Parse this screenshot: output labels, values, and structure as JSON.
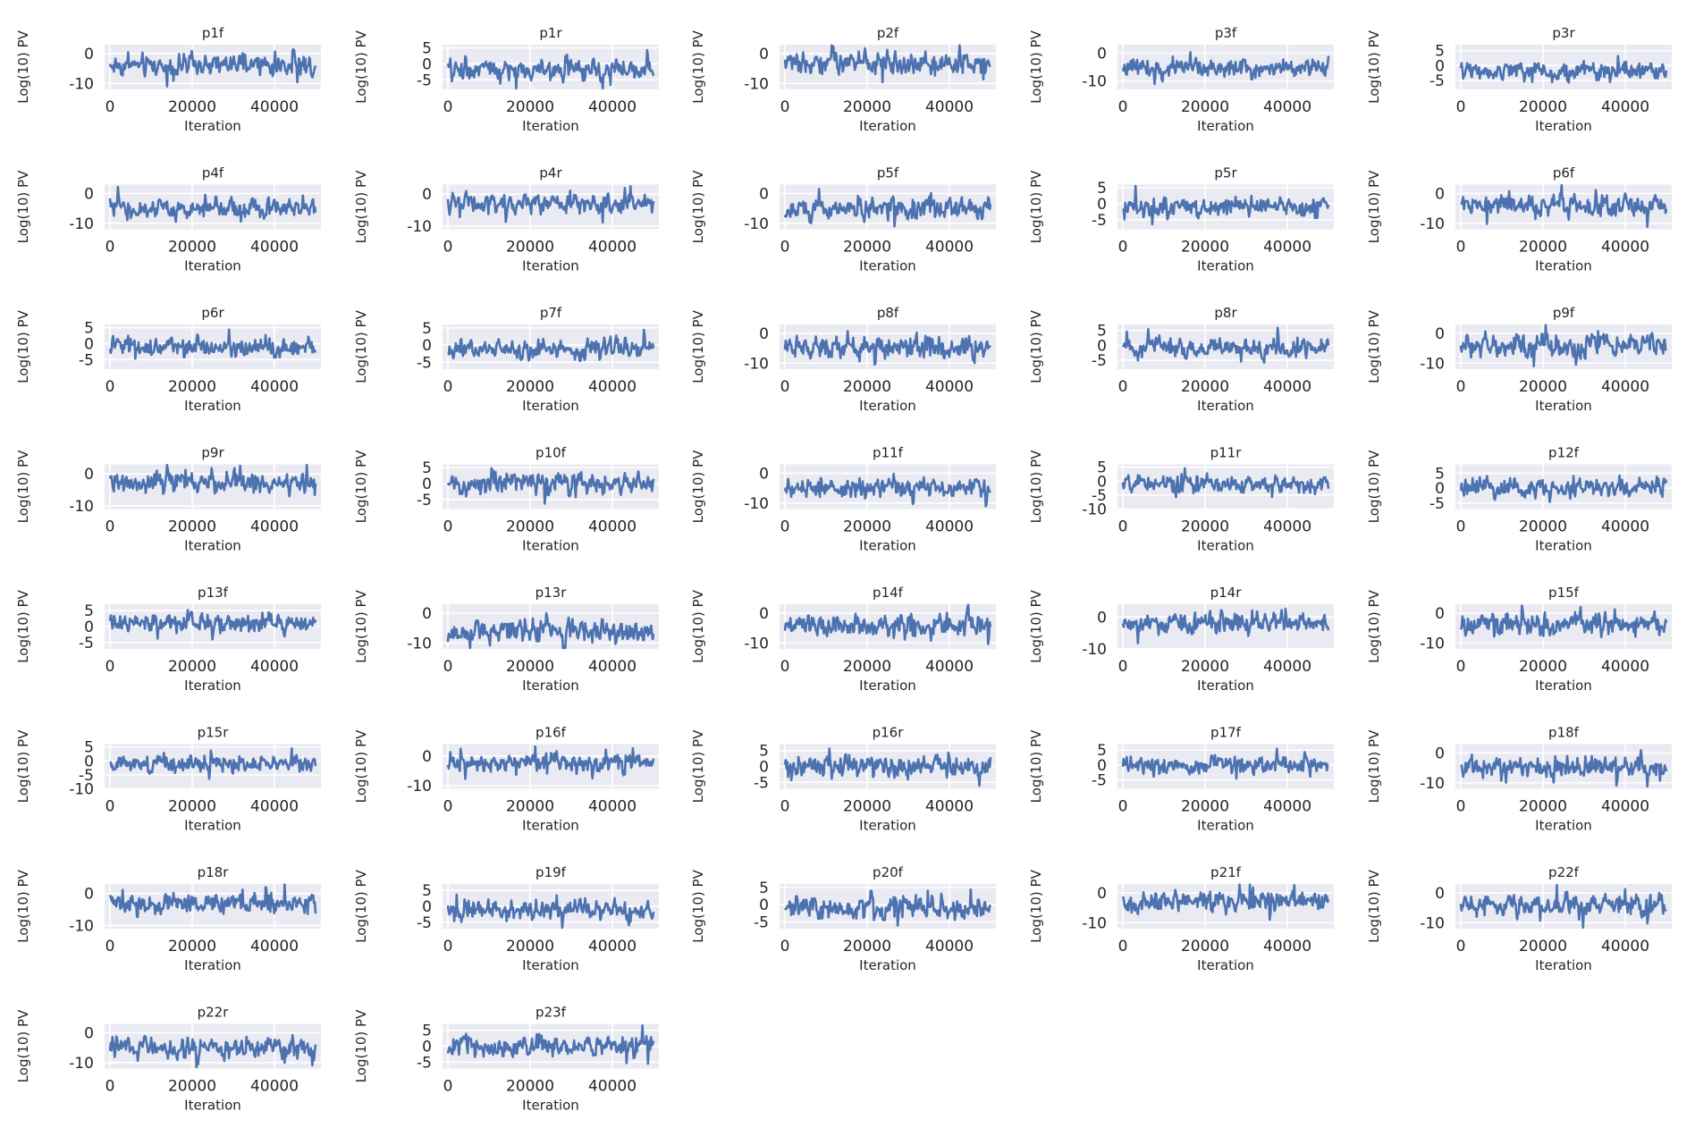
{
  "chart_data": {
    "type": "line",
    "layout": {
      "rows": 8,
      "cols": 5
    },
    "shared_x_ticks": [
      0,
      20000,
      40000
    ],
    "shared_xlim": [
      0,
      50000
    ],
    "xlabel": "Iteration",
    "ylabel": "Log(10) PV",
    "grid": true,
    "color": "#4c72b0",
    "background": "#eaeaf2",
    "panels": [
      {
        "title": "p1f",
        "ylim": [
          -12,
          3
        ],
        "yticks": [
          0,
          -10
        ],
        "mean": -4,
        "spread": 2.5
      },
      {
        "title": "p1r",
        "ylim": [
          -8,
          6
        ],
        "yticks": [
          5,
          0,
          -5
        ],
        "mean": -2,
        "spread": 2.2
      },
      {
        "title": "p2f",
        "ylim": [
          -12,
          3
        ],
        "yticks": [
          0,
          -10
        ],
        "mean": -3,
        "spread": 2.5
      },
      {
        "title": "p3f",
        "ylim": [
          -13,
          3
        ],
        "yticks": [
          0,
          -10
        ],
        "mean": -5,
        "spread": 2.2
      },
      {
        "title": "p3r",
        "ylim": [
          -8,
          7
        ],
        "yticks": [
          5,
          0,
          -5
        ],
        "mean": -2,
        "spread": 2.2
      },
      {
        "title": "p4f",
        "ylim": [
          -12,
          3
        ],
        "yticks": [
          0,
          -10
        ],
        "mean": -5,
        "spread": 2.2
      },
      {
        "title": "p4r",
        "ylim": [
          -11,
          3
        ],
        "yticks": [
          0,
          -10
        ],
        "mean": -3,
        "spread": 2.2
      },
      {
        "title": "p5f",
        "ylim": [
          -12,
          3
        ],
        "yticks": [
          0,
          -10
        ],
        "mean": -5,
        "spread": 2.5
      },
      {
        "title": "p5r",
        "ylim": [
          -8,
          6
        ],
        "yticks": [
          5,
          0,
          -5
        ],
        "mean": -1,
        "spread": 2.2
      },
      {
        "title": "p6f",
        "ylim": [
          -12,
          3
        ],
        "yticks": [
          0,
          -10
        ],
        "mean": -4,
        "spread": 2.5
      },
      {
        "title": "p6r",
        "ylim": [
          -8,
          6
        ],
        "yticks": [
          5,
          0,
          -5
        ],
        "mean": -1,
        "spread": 2.0
      },
      {
        "title": "p7f",
        "ylim": [
          -7,
          6
        ],
        "yticks": [
          5,
          0,
          -5
        ],
        "mean": -1,
        "spread": 2.0
      },
      {
        "title": "p8f",
        "ylim": [
          -12,
          3
        ],
        "yticks": [
          0,
          -10
        ],
        "mean": -5,
        "spread": 2.5
      },
      {
        "title": "p8r",
        "ylim": [
          -8,
          7
        ],
        "yticks": [
          5,
          0,
          -5
        ],
        "mean": -1,
        "spread": 2.2
      },
      {
        "title": "p9f",
        "ylim": [
          -12,
          3
        ],
        "yticks": [
          0,
          -10
        ],
        "mean": -4,
        "spread": 2.5
      },
      {
        "title": "p9r",
        "ylim": [
          -11,
          3
        ],
        "yticks": [
          0,
          -10
        ],
        "mean": -3,
        "spread": 2.2
      },
      {
        "title": "p10f",
        "ylim": [
          -8,
          6
        ],
        "yticks": [
          5,
          0,
          -5
        ],
        "mean": 0,
        "spread": 2.2
      },
      {
        "title": "p11f",
        "ylim": [
          -12,
          3
        ],
        "yticks": [
          0,
          -10
        ],
        "mean": -5,
        "spread": 2.2
      },
      {
        "title": "p11r",
        "ylim": [
          -10,
          6
        ],
        "yticks": [
          5,
          0,
          -5,
          -10
        ],
        "mean": -1,
        "spread": 2.2
      },
      {
        "title": "p12f",
        "ylim": [
          -7,
          8
        ],
        "yticks": [
          5,
          0,
          -5
        ],
        "mean": 0,
        "spread": 2.2
      },
      {
        "title": "p13f",
        "ylim": [
          -7,
          7
        ],
        "yticks": [
          5,
          0,
          -5
        ],
        "mean": 1,
        "spread": 2.0
      },
      {
        "title": "p13r",
        "ylim": [
          -12,
          3
        ],
        "yticks": [
          0,
          -10
        ],
        "mean": -6,
        "spread": 2.5
      },
      {
        "title": "p14f",
        "ylim": [
          -12,
          3
        ],
        "yticks": [
          0,
          -10
        ],
        "mean": -4,
        "spread": 2.5
      },
      {
        "title": "p14r",
        "ylim": [
          -10,
          4
        ],
        "yticks": [
          0,
          -10
        ],
        "mean": -2,
        "spread": 2.2
      },
      {
        "title": "p15f",
        "ylim": [
          -12,
          3
        ],
        "yticks": [
          0,
          -10
        ],
        "mean": -4,
        "spread": 2.5
      },
      {
        "title": "p15r",
        "ylim": [
          -10,
          6
        ],
        "yticks": [
          5,
          0,
          -5,
          -10
        ],
        "mean": -1,
        "spread": 2.2
      },
      {
        "title": "p16f",
        "ylim": [
          -11,
          4
        ],
        "yticks": [
          0,
          -10
        ],
        "mean": -2,
        "spread": 2.2
      },
      {
        "title": "p16r",
        "ylim": [
          -7,
          7
        ],
        "yticks": [
          5,
          0,
          -5
        ],
        "mean": 0,
        "spread": 2.2
      },
      {
        "title": "p17f",
        "ylim": [
          -8,
          7
        ],
        "yticks": [
          5,
          0,
          -5
        ],
        "mean": 0,
        "spread": 2.0
      },
      {
        "title": "p18f",
        "ylim": [
          -12,
          3
        ],
        "yticks": [
          0,
          -10
        ],
        "mean": -5,
        "spread": 2.5
      },
      {
        "title": "p18r",
        "ylim": [
          -11,
          3
        ],
        "yticks": [
          0,
          -10
        ],
        "mean": -3,
        "spread": 2.2
      },
      {
        "title": "p19f",
        "ylim": [
          -7,
          7
        ],
        "yticks": [
          5,
          0,
          -5
        ],
        "mean": -1,
        "spread": 2.2
      },
      {
        "title": "p20f",
        "ylim": [
          -7,
          6
        ],
        "yticks": [
          5,
          0,
          -5
        ],
        "mean": -1,
        "spread": 2.2
      },
      {
        "title": "p21f",
        "ylim": [
          -12,
          3
        ],
        "yticks": [
          0,
          -10
        ],
        "mean": -3,
        "spread": 2.5
      },
      {
        "title": "p22f",
        "ylim": [
          -12,
          3
        ],
        "yticks": [
          0,
          -10
        ],
        "mean": -4,
        "spread": 2.5
      },
      {
        "title": "p22r",
        "ylim": [
          -12,
          3
        ],
        "yticks": [
          0,
          -10
        ],
        "mean": -5,
        "spread": 2.5
      },
      {
        "title": "p23f",
        "ylim": [
          -7,
          7
        ],
        "yticks": [
          5,
          0,
          -5
        ],
        "mean": 0,
        "spread": 2.2
      }
    ]
  }
}
